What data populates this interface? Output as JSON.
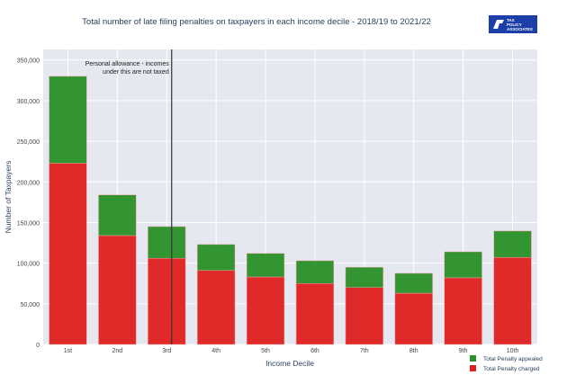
{
  "chart_data": {
    "type": "bar",
    "stacked": true,
    "title": "Total number of late filing penalties on taxpayers in each income decile - 2018/19  to 2021/22",
    "xlabel": "Income Decile",
    "ylabel": "Number of Taxpayers",
    "ylim": [
      0,
      363000
    ],
    "yticks": [
      0,
      50000,
      100000,
      150000,
      200000,
      250000,
      300000,
      350000
    ],
    "ytick_labels": [
      "0",
      "50,000",
      "100,000",
      "150,000",
      "200,000",
      "250,000",
      "300,000",
      "350,000"
    ],
    "grid": true,
    "legend_position": "bottom-right",
    "categories": [
      "1st",
      "2nd",
      "3rd",
      "4th",
      "5th",
      "6th",
      "7th",
      "8th",
      "9th",
      "10th"
    ],
    "series": [
      {
        "name": "Total Penalty charged",
        "color": "#e02020",
        "values": [
          223000,
          134000,
          106000,
          91000,
          83000,
          75000,
          70000,
          63000,
          82000,
          107000
        ]
      },
      {
        "name": "Total Penalty appealed",
        "color": "#2a9128",
        "values": [
          107000,
          50000,
          39000,
          32000,
          29000,
          28000,
          25000,
          24500,
          32000,
          32600
        ]
      }
    ],
    "vline": {
      "x_category_position": 2.1,
      "color": "#333333"
    },
    "annotation": [
      "Personal allowance - incomes",
      "under this are not taxed"
    ]
  },
  "logo": {
    "text": "TAX POLICY ASSOCIATES",
    "color": "#1b3ea8"
  }
}
